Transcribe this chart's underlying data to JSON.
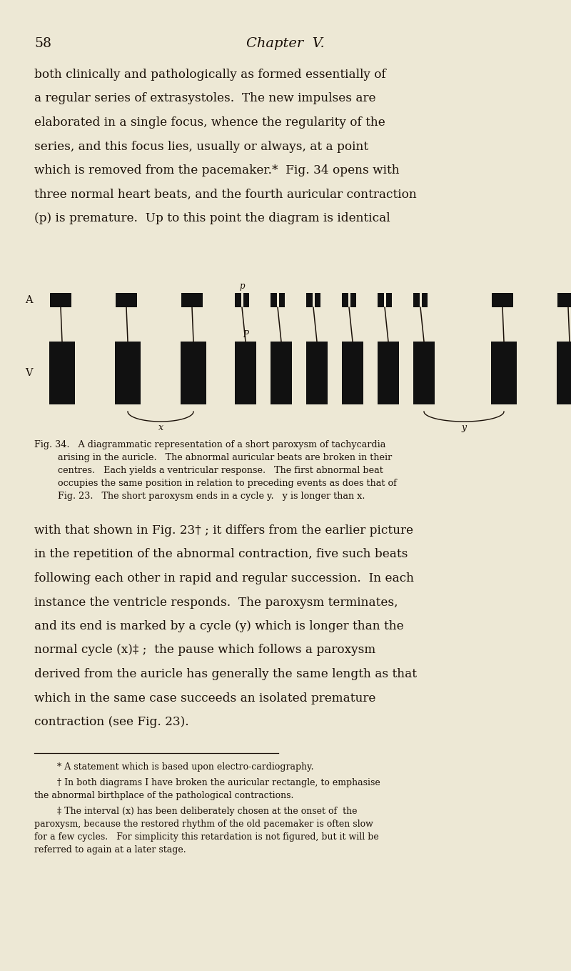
{
  "bg_color": "#ede8d5",
  "text_color": "#1a1008",
  "page_number": "58",
  "chapter_title": "Chapter  V.",
  "paragraph1_lines": [
    "both clinically and pathologically as formed essentially of",
    "a regular series of extrasystoles.  The new impulses are",
    "elaborated in a single focus, whence the regularity of the",
    "series, and this focus lies, usually or always, at a point",
    "which is removed from the pacemaker.*  Fig. 34 opens with",
    "three normal heart beats, and the fourth auricular contraction",
    "(p) is premature.  Up to this point the diagram is identical"
  ],
  "paragraph2_lines": [
    "with that shown in Fig. 23† ; it differs from the earlier picture",
    "in the repetition of the abnormal contraction, five such beats",
    "following each other in rapid and regular succession.  In each",
    "instance the ventricle responds.  The paroxysm terminates,",
    "and its end is marked by a cycle (y) which is longer than the",
    "normal cycle (x)‡ ;  the pause which follows a paroxysm",
    "derived from the auricle has generally the same length as that",
    "which in the same case succeeds an isolated premature",
    "contraction (see Fig. 23)."
  ],
  "fig_caption_lines": [
    "Fig. 34.   A diagrammatic representation of a short paroxysm of tachycardia",
    "    arising in the auricle.   The abnormal auricular beats are broken in their",
    "    centres.   Each yields a ventricular response.   The first abnormal beat",
    "    occupies the same position in relation to preceding events as does that of",
    "    Fig. 23.   The short paroxysm ends in a cycle y.   y is longer than x."
  ],
  "footnote1": "* A statement which is based upon electro-cardiography.",
  "footnote2_lines": [
    "† In both diagrams I have broken the auricular rectangle, to emphasise",
    "the abnormal birthplace of the pathological contractions."
  ],
  "footnote3_lines": [
    "‡ The interval (x) has been deliberately chosen at the onset of  the",
    "paroxysm, because the restored rhythm of the old pacemaker is often slow",
    "for a few cycles.   For simplicity this retardation is not figured, but it will be",
    "referred to again at a later stage."
  ]
}
